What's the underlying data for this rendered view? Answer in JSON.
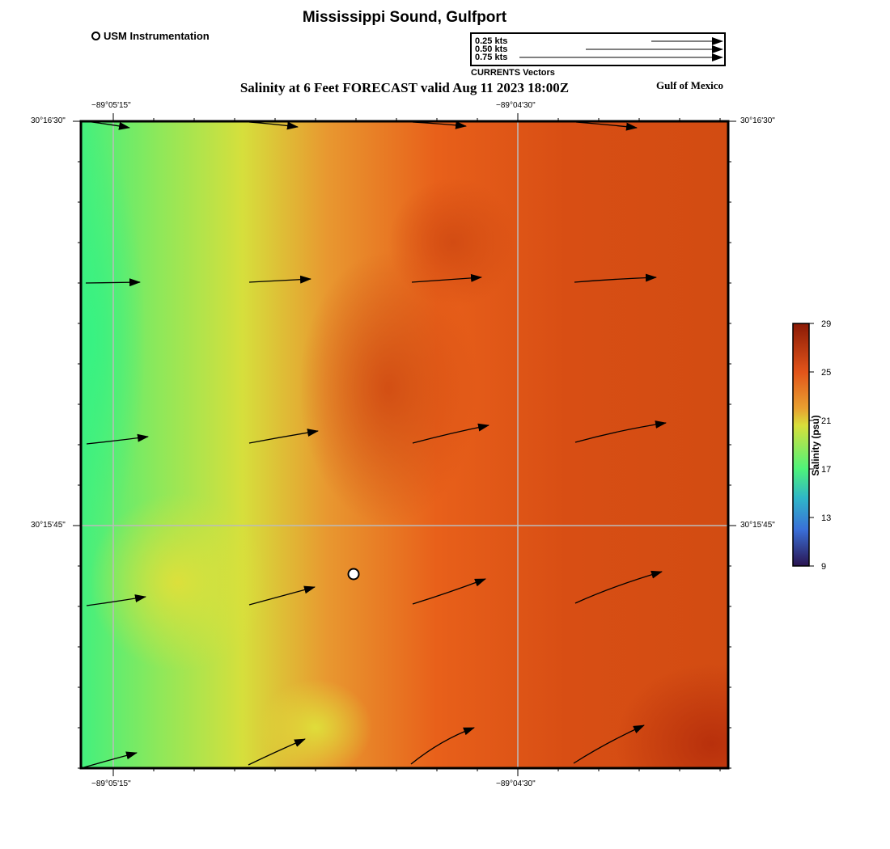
{
  "header": {
    "title": "Mississippi Sound, Gulfport",
    "subtitle": "Salinity at 6 Feet FORECAST valid Aug 11 2023 18:00Z",
    "region_label": "Gulf of Mexico",
    "footer_title": "Mississippi Sound, Gulfport"
  },
  "legend": {
    "station_label": "USM Instrumentation",
    "vector_caption": "CURRENTS Vectors",
    "vector_scale": [
      "0.25 kts",
      "0.50 kts",
      "0.75 kts"
    ]
  },
  "axes": {
    "lon_labels": [
      "−89°05'15\"",
      "−89°04'30\""
    ],
    "lat_labels": [
      "30°16'30\"",
      "30°15'45\""
    ]
  },
  "colorbar": {
    "label": "Salinity (psu)",
    "ticks": [
      "29",
      "25",
      "21",
      "17",
      "13",
      "9"
    ],
    "min": 9,
    "max": 29
  },
  "colors": {
    "green": "#3ef57e",
    "yellow": "#d8df3a",
    "orange": "#e8601a",
    "dark_red": "#c23a10",
    "grid": "#bbbbbb"
  }
}
